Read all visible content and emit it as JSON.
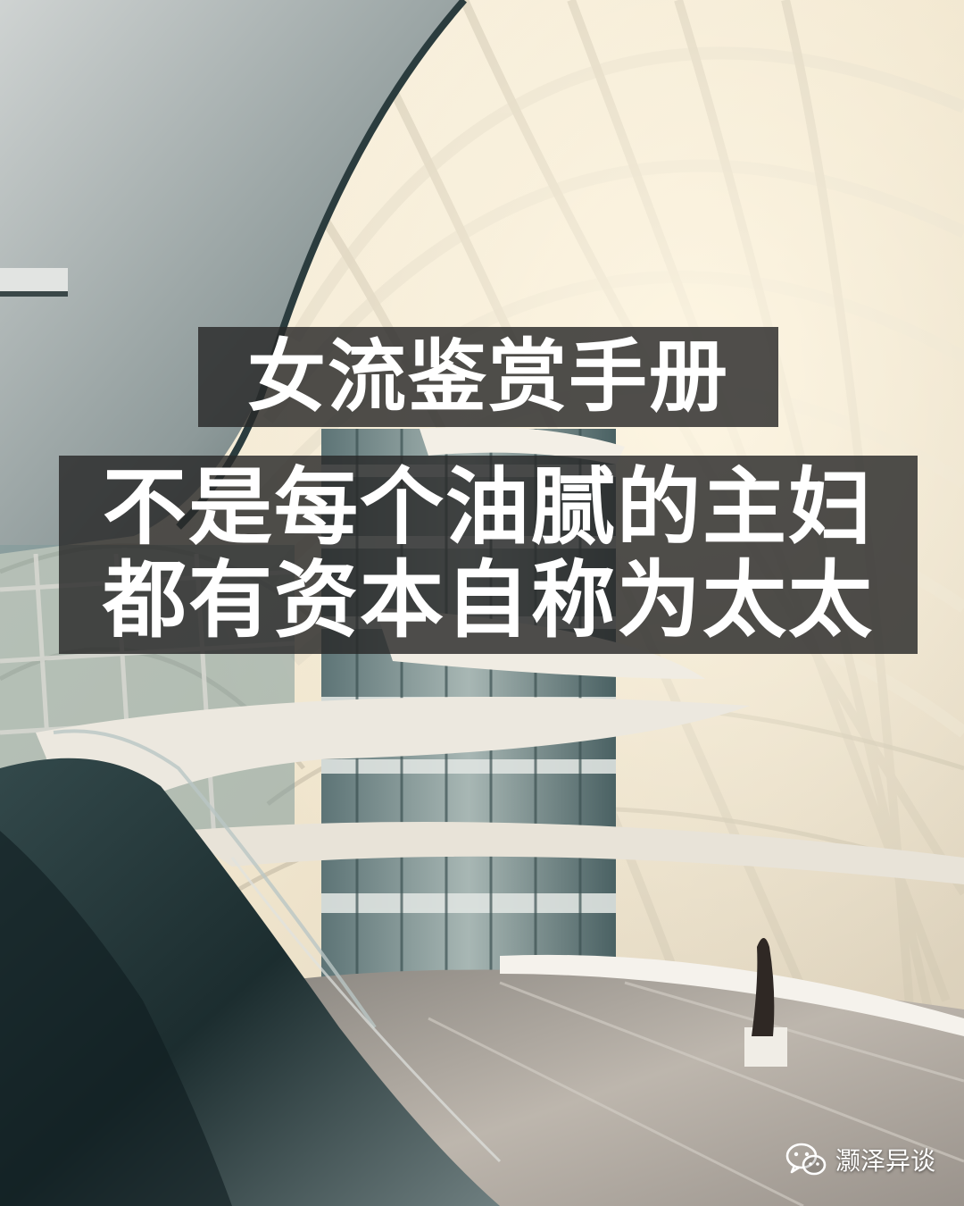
{
  "title": "女流鉴赏手册",
  "subtitle": {
    "line1": "不是每个油腻的主妇",
    "line2": "都有资本自称为太太"
  },
  "watermark": {
    "icon": "wechat-icon",
    "account": "灏泽异谈"
  },
  "background": {
    "description_colors": {
      "light": "#f4ebd8",
      "shadow": "#1f3335",
      "structure": "#e9e2d2",
      "floor": "#b9b2ab"
    }
  }
}
